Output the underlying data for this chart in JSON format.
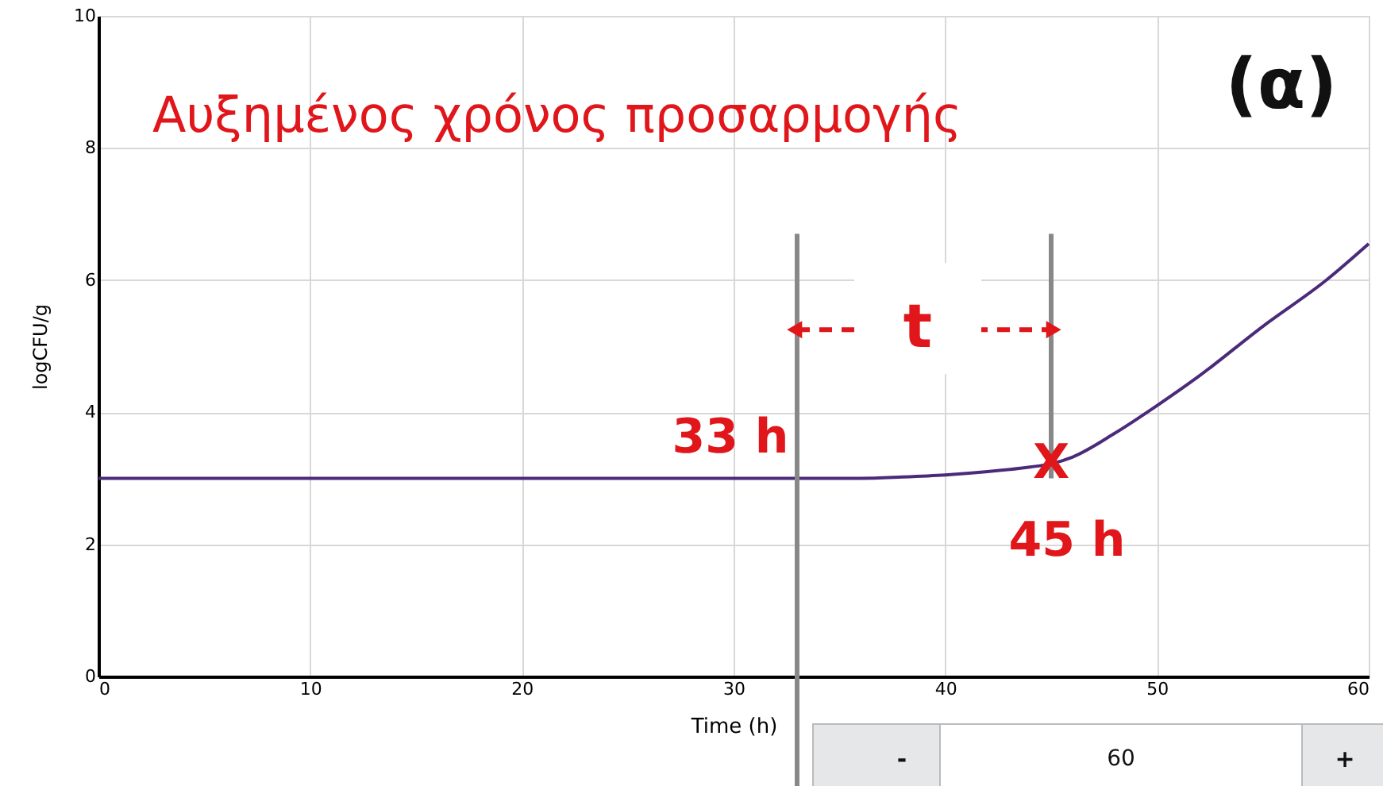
{
  "chart_data": {
    "type": "line",
    "title": "Αυξημένος χρόνος προσαρμογής",
    "xlabel": "Time (h)",
    "ylabel": "logCFU/g",
    "x": [
      0,
      10,
      20,
      30,
      36,
      38,
      40,
      42,
      44,
      45,
      46,
      48,
      50,
      52,
      55,
      58,
      60
    ],
    "series": [
      {
        "color": "#4b2a7a",
        "values": [
          3.0,
          3.0,
          3.0,
          3.0,
          3.0,
          3.02,
          3.05,
          3.1,
          3.17,
          3.22,
          3.32,
          3.68,
          4.1,
          4.55,
          5.3,
          6.0,
          6.55
        ]
      }
    ],
    "xlim": [
      0,
      60
    ],
    "xticks": [
      0,
      10,
      20,
      30,
      40,
      50,
      60
    ],
    "ylim": [
      0,
      10
    ],
    "yticks": [
      0,
      2,
      4,
      6,
      8,
      10
    ],
    "grid": true,
    "marker": "none",
    "line_style": "solid",
    "ref_lines": [
      {
        "axis": "x",
        "value": 33,
        "label": "33 h",
        "color": "#888888"
      },
      {
        "axis": "x",
        "value": 45,
        "label": "45 h",
        "color": "#888888"
      }
    ],
    "annotations": [
      "(α)",
      "t",
      {
        "text": "X",
        "x": 45,
        "y": 3.22
      },
      "-",
      "60",
      "+"
    ]
  }
}
